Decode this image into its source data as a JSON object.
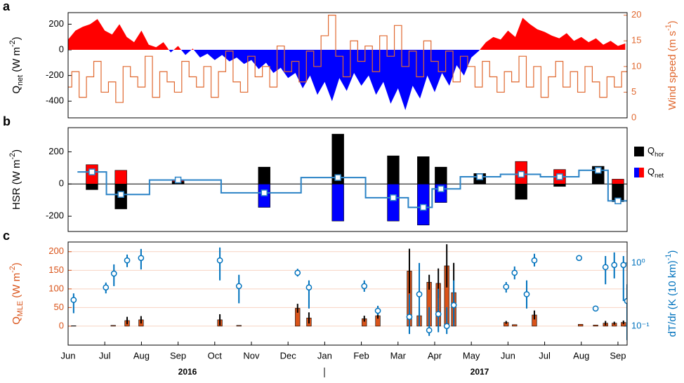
{
  "chart_data": [
    {
      "type": "area",
      "panel_label": "a",
      "ylabel": [
        {
          "text": "Q"
        },
        {
          "text": "net",
          "shift": "sub"
        },
        {
          "text": " (W m"
        },
        {
          "text": "-2",
          "shift": "sup"
        },
        {
          "text": ")"
        }
      ],
      "y2label": [
        {
          "text": "Wind speed (m s"
        },
        {
          "text": "-1",
          "shift": "sup"
        },
        {
          "text": ")"
        }
      ],
      "y2label_color": "#e0682f",
      "xlim": [
        0,
        15.25
      ],
      "ylim": [
        -530,
        290
      ],
      "yticks": [
        -400,
        -200,
        0,
        200
      ],
      "y2lim": [
        0,
        20.5
      ],
      "y2ticks": [
        0,
        5,
        10,
        15,
        20
      ],
      "x": [
        0,
        0.2,
        0.4,
        0.6,
        0.8,
        1,
        1.2,
        1.4,
        1.6,
        1.8,
        2,
        2.2,
        2.4,
        2.6,
        2.8,
        3,
        3.2,
        3.4,
        3.6,
        3.8,
        4,
        4.2,
        4.4,
        4.6,
        4.8,
        5,
        5.2,
        5.4,
        5.6,
        5.8,
        6,
        6.2,
        6.4,
        6.6,
        6.8,
        7,
        7.2,
        7.4,
        7.6,
        7.8,
        8,
        8.2,
        8.4,
        8.6,
        8.8,
        9,
        9.2,
        9.4,
        9.6,
        9.8,
        10,
        10.2,
        10.4,
        10.6,
        10.8,
        11,
        11.2,
        11.4,
        11.6,
        11.8,
        12,
        12.2,
        12.4,
        12.6,
        12.8,
        13,
        13.2,
        13.4,
        13.6,
        13.8,
        14,
        14.2,
        14.4,
        14.6,
        14.8,
        15,
        15.2
      ],
      "series": [
        {
          "type": "area",
          "color": "#ff0000",
          "neg_color": "#0000ff",
          "values": [
            80,
            150,
            180,
            200,
            240,
            150,
            120,
            200,
            100,
            60,
            150,
            40,
            20,
            60,
            -20,
            30,
            -40,
            10,
            -60,
            -30,
            -80,
            -40,
            -90,
            -60,
            -110,
            -80,
            -150,
            -100,
            -180,
            -140,
            -220,
            -180,
            -300,
            -200,
            -350,
            -250,
            -400,
            -220,
            -320,
            -180,
            -280,
            -200,
            -350,
            -250,
            -420,
            -300,
            -470,
            -280,
            -380,
            -200,
            -330,
            -180,
            -280,
            -120,
            -200,
            -60,
            -10,
            60,
            100,
            80,
            150,
            100,
            250,
            200,
            160,
            140,
            110,
            90,
            130,
            70,
            100,
            60,
            90,
            40,
            70,
            30,
            50
          ]
        },
        {
          "type": "step",
          "axis": "y2",
          "color": "#e0682f",
          "values": [
            6,
            9,
            4,
            8,
            11,
            5,
            7,
            3,
            10,
            8,
            6,
            12,
            4,
            9,
            7,
            5,
            11,
            8,
            6,
            10,
            4,
            9,
            13,
            7,
            5,
            12,
            8,
            10,
            6,
            14,
            9,
            11,
            7,
            13,
            10,
            16,
            20,
            12,
            8,
            15,
            11,
            14,
            9,
            16,
            12,
            18,
            10,
            13,
            8,
            15,
            11,
            9,
            13,
            7,
            12,
            10,
            6,
            11,
            8,
            5,
            9,
            7,
            12,
            6,
            10,
            4,
            8,
            11,
            6,
            9,
            5,
            10,
            7,
            4,
            8,
            6,
            9
          ]
        }
      ]
    },
    {
      "type": "bar",
      "panel_label": "b",
      "ylabel": [
        {
          "text": "HSR (W m"
        },
        {
          "text": "-2",
          "shift": "sup"
        },
        {
          "text": ")"
        }
      ],
      "xlim": [
        0,
        15.25
      ],
      "ylim": [
        -295,
        350
      ],
      "yticks": [
        -200,
        0,
        200
      ],
      "zero_line": true,
      "legend": "right",
      "x": [
        0.65,
        1.44,
        3.0,
        5.35,
        7.36,
        8.87,
        9.69,
        10.17,
        11.23,
        12.36,
        13.41,
        14.46,
        15.0
      ],
      "series": [
        {
          "type": "bar",
          "name": [
            {
              "text": "Q"
            },
            {
              "text": "hor",
              "shift": "sub"
            }
          ],
          "color": "#000000",
          "values": [
            -35,
            -155,
            15,
            105,
            310,
            175,
            170,
            105,
            65,
            -95,
            -15,
            110,
            -110
          ]
        },
        {
          "type": "bar",
          "name": [
            {
              "text": "Q"
            },
            {
              "text": "net",
              "shift": "sub"
            }
          ],
          "color": "#ff0000",
          "neg_color": "#0000ff",
          "values": [
            120,
            85,
            25,
            -145,
            -230,
            -230,
            -255,
            -115,
            50,
            140,
            90,
            90,
            30
          ]
        },
        {
          "type": "step",
          "color": "#2b83c6",
          "marker": "square",
          "marker_fill": "#ffffff",
          "values": [
            75,
            -65,
            25,
            -55,
            40,
            -85,
            -145,
            -30,
            45,
            60,
            45,
            85,
            -105
          ]
        }
      ]
    },
    {
      "type": "bar",
      "panel_label": "c",
      "ylabel": [
        {
          "text": "Q"
        },
        {
          "text": "MLE",
          "shift": "sub"
        },
        {
          "text": " (W m"
        },
        {
          "text": "-2",
          "shift": "sup"
        },
        {
          "text": ")"
        }
      ],
      "ylabel_color": "#d95319",
      "y2label": [
        {
          "text": "dT/dr (K (10 km)"
        },
        {
          "text": "-1",
          "shift": "sup"
        },
        {
          "text": ")"
        }
      ],
      "y2label_color": "#0072bd",
      "xlim": [
        0,
        15.25
      ],
      "xticks": [
        {
          "value": 0,
          "label": "Jun"
        },
        {
          "value": 1,
          "label": "Jul"
        },
        {
          "value": 2,
          "label": "Aug"
        },
        {
          "value": 3,
          "label": "Sep"
        },
        {
          "value": 4,
          "label": "Oct"
        },
        {
          "value": 5,
          "label": "Nov"
        },
        {
          "value": 6,
          "label": "Dec"
        },
        {
          "value": 7,
          "label": "Jan"
        },
        {
          "value": 8,
          "label": "Feb"
        },
        {
          "value": 9,
          "label": "Mar"
        },
        {
          "value": 10,
          "label": "Apr"
        },
        {
          "value": 11,
          "label": "May"
        },
        {
          "value": 12,
          "label": "Jun"
        },
        {
          "value": 13,
          "label": "Jul"
        },
        {
          "value": 14,
          "label": "Aug"
        },
        {
          "value": 15,
          "label": "Sep"
        }
      ],
      "years": [
        "2016",
        "2017"
      ],
      "ylim": [
        -51,
        226
      ],
      "yticks": [
        0,
        50,
        100,
        150,
        200
      ],
      "grid": true,
      "grid_color": "#f7d3c2",
      "y2lim": [
        0.05,
        2.15
      ],
      "y2scale": "log",
      "y2ticks": [
        {
          "value": 0.1,
          "label": "10⁻¹"
        },
        {
          "value": 1,
          "label": "10⁰"
        }
      ],
      "series": [
        {
          "type": "bar",
          "color": "#d95319",
          "error_color": "#000000",
          "x": [
            0.15,
            1.23,
            1.61,
            1.99,
            4.14,
            4.66,
            6.26,
            6.57,
            8.08,
            8.45,
            9.31,
            9.58,
            9.85,
            10.1,
            10.33,
            10.52,
            11.95,
            12.18,
            12.72,
            13.98,
            14.39,
            14.66,
            14.9,
            15.15
          ],
          "values": [
            1,
            2,
            15,
            17,
            17,
            2,
            48,
            22,
            20,
            28,
            148,
            28,
            118,
            115,
            162,
            90,
            10,
            4,
            30,
            5,
            3,
            8,
            8,
            10
          ],
          "errors": [
            0,
            0,
            10,
            10,
            15,
            0,
            12,
            15,
            8,
            8,
            60,
            20,
            20,
            40,
            58,
            80,
            4,
            0,
            12,
            0,
            0,
            6,
            4,
            5
          ]
        },
        {
          "type": "scatter",
          "axis": "y2",
          "color": "#0072bd",
          "x": [
            0.15,
            1.03,
            1.25,
            1.61,
            1.99,
            4.14,
            4.66,
            6.26,
            6.57,
            8.08,
            8.45,
            9.31,
            9.58,
            9.85,
            10.1,
            10.33,
            10.52,
            11.95,
            12.18,
            12.51,
            12.72,
            13.94,
            14.39,
            14.66,
            14.9,
            15.15,
            15.25
          ],
          "values": [
            0.26,
            0.41,
            0.68,
            1.1,
            1.2,
            1.1,
            0.43,
            0.7,
            0.41,
            0.43,
            0.175,
            0.14,
            0.32,
            0.086,
            0.155,
            0.1,
            0.215,
            0.42,
            0.7,
            0.32,
            1.1,
            1.2,
            0.19,
            0.86,
            0.93,
            0.93,
            0.25
          ],
          "lower": [
            0.16,
            0.33,
            0.43,
            0.86,
            0.79,
            0.53,
            0.23,
            0.61,
            0.19,
            0.35,
            0.15,
            0.075,
            0.1,
            0.07,
            0.08,
            0.075,
            0.1,
            0.34,
            0.55,
            0.19,
            0.88,
            1.2,
            0.19,
            0.46,
            0.57,
            0.25,
            0.06
          ],
          "upper": [
            0.33,
            0.49,
            0.95,
            1.36,
            1.67,
            1.76,
            0.65,
            0.81,
            0.53,
            0.53,
            0.21,
            0.32,
            1.0,
            0.2,
            0.39,
            0.2,
            0.53,
            0.5,
            0.88,
            0.53,
            1.4,
            1.2,
            0.19,
            1.29,
            1.47,
            1.29,
            0.46
          ]
        }
      ]
    }
  ]
}
